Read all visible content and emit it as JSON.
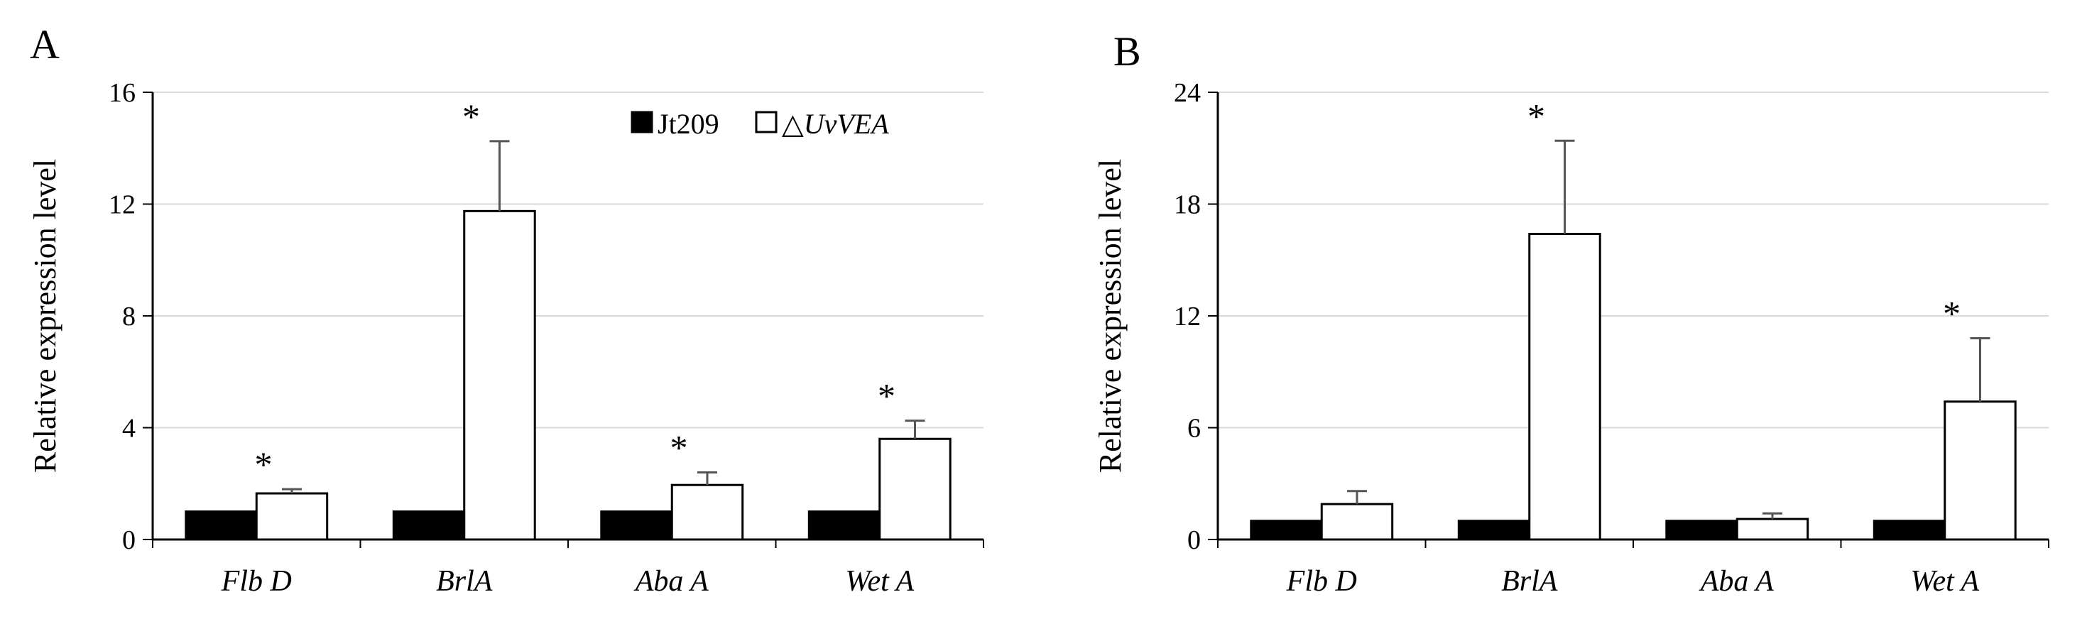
{
  "chart_data": [
    {
      "type": "bar",
      "panel": "A",
      "ylabel": "Relative expression level",
      "ylim": [
        0,
        16
      ],
      "yticks": [
        0,
        4,
        8,
        12,
        16
      ],
      "categories": [
        "Flb D",
        "BrlA",
        "Aba A",
        "Wet A"
      ],
      "series": [
        {
          "name": "Jt209",
          "color": "#000000",
          "values": [
            1.0,
            1.0,
            1.0,
            1.0
          ],
          "errors": [
            0,
            0,
            0,
            0
          ]
        },
        {
          "name": "△UvVEA",
          "color": "#ffffff",
          "values": [
            1.65,
            11.75,
            1.95,
            3.6
          ],
          "errors": [
            0.15,
            2.5,
            0.45,
            0.65
          ]
        }
      ],
      "significance": [
        "*",
        "*",
        "*",
        "*"
      ],
      "grid": true,
      "legend": {
        "position": "top-right",
        "items": [
          {
            "prefix": "",
            "label": "Jt209",
            "italic": ""
          },
          {
            "prefix": "△",
            "label": "",
            "italic": "UvVEA"
          }
        ]
      }
    },
    {
      "type": "bar",
      "panel": "B",
      "ylabel": "Relative expression level",
      "ylim": [
        0,
        24
      ],
      "yticks": [
        0,
        6,
        12,
        18,
        24
      ],
      "categories": [
        "Flb D",
        "BrlA",
        "Aba A",
        "Wet A"
      ],
      "series": [
        {
          "name": "Jt209",
          "color": "#000000",
          "values": [
            1.0,
            1.0,
            1.0,
            1.0
          ],
          "errors": [
            0,
            0,
            0,
            0
          ]
        },
        {
          "name": "△UvVEA",
          "color": "#ffffff",
          "values": [
            1.9,
            16.4,
            1.1,
            7.4
          ],
          "errors": [
            0.7,
            5.0,
            0.3,
            3.4
          ]
        }
      ],
      "significance": [
        "",
        "*",
        "",
        "*"
      ],
      "grid": true
    }
  ]
}
